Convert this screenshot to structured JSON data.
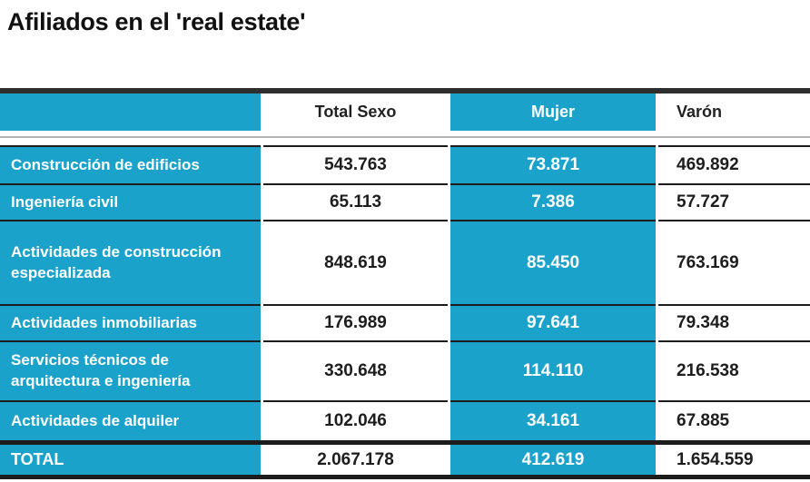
{
  "page": {
    "title": "Afiliados en el 'real estate'"
  },
  "colors": {
    "accent_blue": "#1BA2CB",
    "dark_bar": "#2F2F2F",
    "row_border": "#1C1C1C",
    "thin_line": "#B3B3B3",
    "text_dark": "#1D1D1D",
    "text_light": "#FFFFFF"
  },
  "chart_data": {
    "type": "table",
    "title": "Afiliados en el 'real estate'",
    "columns": [
      "",
      "Total Sexo",
      "Mujer",
      "Varón"
    ],
    "rows": [
      {
        "category": "Construcción de edificios",
        "total_sexo": "543.763",
        "mujer": "73.871",
        "varon": "469.892"
      },
      {
        "category": "Ingeniería civil",
        "total_sexo": "65.113",
        "mujer": "7.386",
        "varon": "57.727"
      },
      {
        "category": "Actividades de construcción especializada",
        "total_sexo": "848.619",
        "mujer": "85.450",
        "varon": "763.169"
      },
      {
        "category": "Actividades inmobiliarias",
        "total_sexo": "176.989",
        "mujer": "97.641",
        "varon": "79.348"
      },
      {
        "category": "Servicios técnicos de arquitectura e ingeniería",
        "total_sexo": "330.648",
        "mujer": "114.110",
        "varon": "216.538"
      },
      {
        "category": "Actividades de alquiler",
        "total_sexo": "102.046",
        "mujer": "34.161",
        "varon": "67.885"
      }
    ],
    "total_row": {
      "category": "TOTAL",
      "total_sexo": "2.067.178",
      "mujer": "412.619",
      "varon": "1.654.559"
    }
  }
}
